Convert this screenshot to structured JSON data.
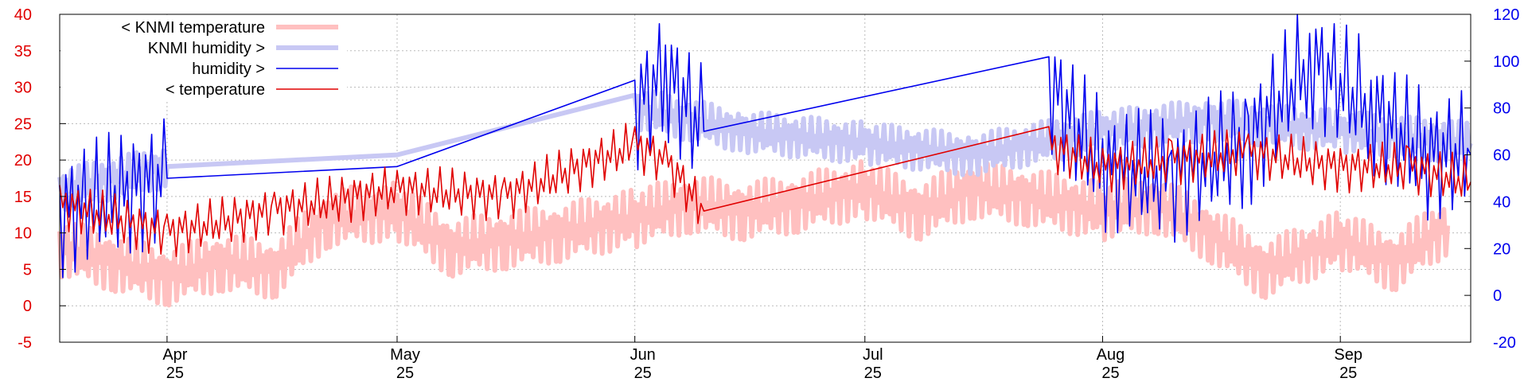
{
  "chart_data": {
    "type": "line",
    "title": "",
    "x_range": [
      "2025-03-18",
      "2025-09-18"
    ],
    "y_left": {
      "range": [
        -5,
        40
      ],
      "ticks": [
        -5,
        0,
        5,
        10,
        15,
        20,
        25,
        30,
        35,
        40
      ],
      "color": "#e00000"
    },
    "y_right": {
      "range": [
        -20,
        120
      ],
      "ticks": [
        -20,
        0,
        20,
        40,
        60,
        80,
        100,
        120
      ],
      "color": "#0000ee"
    },
    "x_ticks": [
      {
        "date": "2025-04-01",
        "month": "Apr",
        "year": "25"
      },
      {
        "date": "2025-05-01",
        "month": "May",
        "year": "25"
      },
      {
        "date": "2025-06-01",
        "month": "Jun",
        "year": "25"
      },
      {
        "date": "2025-07-01",
        "month": "Jul",
        "year": "25"
      },
      {
        "date": "2025-08-01",
        "month": "Aug",
        "year": "25"
      },
      {
        "date": "2025-09-01",
        "month": "Sep",
        "year": "25"
      }
    ],
    "grid": true,
    "legend_position": "top-left",
    "series": [
      {
        "name": "< KNMI temperature",
        "axis": "left",
        "color": "#ffc0c0",
        "style": "thick",
        "points": [
          [
            "2025-03-18",
            8
          ],
          [
            "2025-03-25",
            6
          ],
          [
            "2025-04-01",
            4
          ],
          [
            "2025-04-08",
            6
          ],
          [
            "2025-04-15",
            5
          ],
          [
            "2025-04-22",
            12
          ],
          [
            "2025-05-01",
            13
          ],
          [
            "2025-05-08",
            8
          ],
          [
            "2025-05-15",
            9
          ],
          [
            "2025-05-22",
            10
          ],
          [
            "2025-06-01",
            12
          ],
          [
            "2025-06-08",
            14
          ],
          [
            "2025-06-15",
            13
          ],
          [
            "2025-06-22",
            14
          ],
          [
            "2025-07-01",
            16
          ],
          [
            "2025-07-08",
            13
          ],
          [
            "2025-07-15",
            16
          ],
          [
            "2025-07-22",
            15
          ],
          [
            "2025-08-01",
            13
          ],
          [
            "2025-08-08",
            14
          ],
          [
            "2025-08-15",
            10
          ],
          [
            "2025-08-22",
            5
          ],
          [
            "2025-09-01",
            9
          ],
          [
            "2025-09-08",
            6
          ],
          [
            "2025-09-15",
            11
          ]
        ]
      },
      {
        "name": "KNMI humidity >",
        "axis": "right",
        "color": "#c8c8f4",
        "style": "thick",
        "points": [
          [
            "2025-03-18",
            45
          ],
          [
            "2025-04-01",
            55
          ],
          [
            "2025-05-01",
            60
          ],
          [
            "2025-06-01",
            80
          ],
          [
            "2025-06-15",
            70
          ],
          [
            "2025-07-01",
            65
          ],
          [
            "2025-07-15",
            60
          ],
          [
            "2025-08-01",
            70
          ],
          [
            "2025-08-15",
            75
          ],
          [
            "2025-09-01",
            70
          ],
          [
            "2025-09-18",
            65
          ]
        ]
      },
      {
        "name": "humidity >",
        "axis": "right",
        "color": "#0000ee",
        "style": "thin",
        "points": [
          [
            "2025-03-18",
            35
          ],
          [
            "2025-04-01",
            50
          ],
          [
            "2025-05-01",
            55
          ],
          [
            "2025-06-01",
            80
          ],
          [
            "2025-06-05",
            95
          ],
          [
            "2025-06-10",
            70
          ],
          [
            "2025-07-25",
            90
          ],
          [
            "2025-08-01",
            55
          ],
          [
            "2025-08-10",
            50
          ],
          [
            "2025-08-20",
            65
          ],
          [
            "2025-08-28",
            100
          ],
          [
            "2025-09-05",
            80
          ],
          [
            "2025-09-12",
            60
          ],
          [
            "2025-09-18",
            60
          ]
        ]
      },
      {
        "name": "< temperature",
        "axis": "left",
        "color": "#e00000",
        "style": "thin",
        "points": [
          [
            "2025-03-18",
            14
          ],
          [
            "2025-04-01",
            10
          ],
          [
            "2025-04-15",
            13
          ],
          [
            "2025-05-01",
            16
          ],
          [
            "2025-05-15",
            15
          ],
          [
            "2025-06-01",
            22
          ],
          [
            "2025-06-05",
            20
          ],
          [
            "2025-06-10",
            13
          ],
          [
            "2025-07-25",
            22
          ],
          [
            "2025-08-01",
            19
          ],
          [
            "2025-08-10",
            20
          ],
          [
            "2025-08-20",
            21
          ],
          [
            "2025-09-01",
            19
          ],
          [
            "2025-09-10",
            19
          ],
          [
            "2025-09-18",
            17
          ]
        ]
      }
    ]
  }
}
